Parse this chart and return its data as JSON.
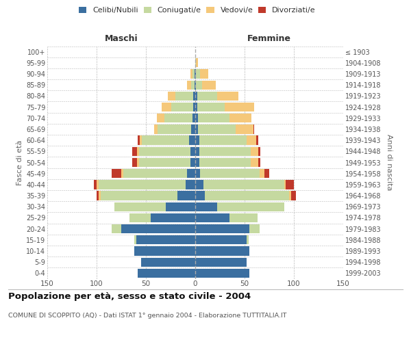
{
  "age_groups": [
    "0-4",
    "5-9",
    "10-14",
    "15-19",
    "20-24",
    "25-29",
    "30-34",
    "35-39",
    "40-44",
    "45-49",
    "50-54",
    "55-59",
    "60-64",
    "65-69",
    "70-74",
    "75-79",
    "80-84",
    "85-89",
    "90-94",
    "95-99",
    "100+"
  ],
  "birth_years": [
    "1999-2003",
    "1994-1998",
    "1989-1993",
    "1984-1988",
    "1979-1983",
    "1974-1978",
    "1969-1973",
    "1964-1968",
    "1959-1963",
    "1954-1958",
    "1949-1953",
    "1944-1948",
    "1939-1943",
    "1934-1938",
    "1929-1933",
    "1924-1928",
    "1919-1923",
    "1914-1918",
    "1909-1913",
    "1904-1908",
    "≤ 1903"
  ],
  "male_celibi": [
    58,
    55,
    62,
    60,
    75,
    45,
    30,
    18,
    10,
    8,
    5,
    5,
    6,
    4,
    3,
    2,
    2,
    1,
    1,
    0,
    0
  ],
  "male_coniugati": [
    0,
    0,
    0,
    2,
    10,
    22,
    52,
    78,
    88,
    65,
    52,
    52,
    48,
    34,
    28,
    22,
    18,
    3,
    2,
    0,
    0
  ],
  "male_vedovi": [
    0,
    0,
    0,
    0,
    0,
    0,
    0,
    2,
    2,
    2,
    2,
    2,
    2,
    4,
    8,
    10,
    8,
    4,
    2,
    0,
    0
  ],
  "male_divorziati": [
    0,
    0,
    0,
    0,
    0,
    0,
    0,
    2,
    3,
    10,
    5,
    5,
    2,
    0,
    0,
    0,
    0,
    0,
    0,
    0,
    0
  ],
  "female_celibi": [
    55,
    52,
    55,
    52,
    55,
    35,
    22,
    10,
    8,
    5,
    4,
    4,
    4,
    3,
    3,
    2,
    2,
    1,
    1,
    0,
    0
  ],
  "female_coniugati": [
    0,
    0,
    0,
    2,
    10,
    28,
    68,
    85,
    82,
    60,
    52,
    52,
    48,
    38,
    32,
    28,
    20,
    6,
    4,
    1,
    0
  ],
  "female_vedovi": [
    0,
    0,
    0,
    0,
    0,
    0,
    0,
    2,
    2,
    5,
    8,
    8,
    10,
    18,
    22,
    30,
    22,
    14,
    8,
    2,
    0
  ],
  "female_divorziati": [
    0,
    0,
    0,
    0,
    0,
    0,
    0,
    5,
    8,
    5,
    2,
    2,
    2,
    1,
    0,
    0,
    0,
    0,
    0,
    0,
    0
  ],
  "color_celibi": "#3b6fa0",
  "color_coniugati": "#c5d9a0",
  "color_vedovi": "#f5c87a",
  "color_divorziati": "#c0392b",
  "title": "Popolazione per età, sesso e stato civile - 2004",
  "subtitle": "COMUNE DI SCOPPITO (AQ) - Dati ISTAT 1° gennaio 2004 - Elaborazione TUTTITALIA.IT",
  "label_maschi": "Maschi",
  "label_femmine": "Femmine",
  "ylabel_left": "Fasce di età",
  "ylabel_right": "Anni di nascita",
  "xlim": 150,
  "bg_color": "#ffffff",
  "grid_color": "#bbbbbb",
  "legend_labels": [
    "Celibi/Nubili",
    "Coniugati/e",
    "Vedovi/e",
    "Divorziati/e"
  ]
}
